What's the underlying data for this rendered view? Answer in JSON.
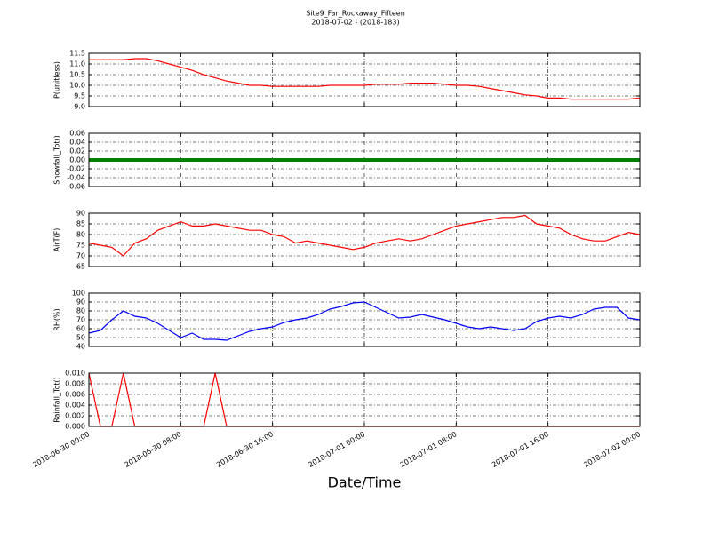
{
  "chart_data": [
    {
      "type": "line",
      "title": "Site9_Far_Rockaway_Fifteen",
      "subtitle": "2018-07-02 - (2018-183)",
      "ylabel": "P(unitless)",
      "series": [
        {
          "color": "#ff0000",
          "values": [
            11.2,
            11.2,
            11.2,
            11.2,
            11.25,
            11.25,
            11.15,
            11.0,
            10.85,
            10.7,
            10.5,
            10.35,
            10.2,
            10.1,
            10.0,
            10.0,
            9.95,
            9.95,
            9.95,
            9.95,
            9.95,
            10.0,
            10.0,
            10.0,
            10.0,
            10.05,
            10.05,
            10.05,
            10.1,
            10.1,
            10.1,
            10.05,
            10.0,
            10.0,
            9.95,
            9.85,
            9.75,
            9.65,
            9.55,
            9.5,
            9.4,
            9.4,
            9.35,
            9.35,
            9.35,
            9.35,
            9.35,
            9.35,
            9.4
          ]
        }
      ],
      "ylim": [
        9.0,
        11.5
      ],
      "yticks": [
        {
          "value": 9,
          "label": "9.0"
        },
        9.5,
        {
          "value": 10,
          "label": "10.0"
        },
        10.5,
        {
          "value": 11,
          "label": "11.0"
        },
        11.5
      ],
      "grid": true
    },
    {
      "type": "line",
      "ylabel": "Snowfall_Tot()",
      "series": [
        {
          "color": "#008000",
          "values": [
            0,
            0,
            0,
            0,
            0,
            0,
            0,
            0,
            0,
            0,
            0,
            0,
            0,
            0,
            0,
            0,
            0,
            0,
            0,
            0,
            0,
            0,
            0,
            0,
            0,
            0,
            0,
            0,
            0,
            0,
            0,
            0,
            0,
            0,
            0,
            0,
            0,
            0,
            0,
            0,
            0,
            0,
            0,
            0,
            0,
            0,
            0,
            0,
            0
          ]
        }
      ],
      "ylim": [
        -0.06,
        0.06
      ],
      "yticks": [
        -0.06,
        -0.04,
        -0.02,
        {
          "value": 0,
          "label": "0.00"
        },
        0.02,
        0.04,
        0.06
      ],
      "grid": true
    },
    {
      "type": "line",
      "ylabel": "AirT(F)",
      "series": [
        {
          "color": "#ff0000",
          "values": [
            76,
            75,
            74,
            70,
            76,
            78,
            82,
            84,
            86,
            84,
            84,
            85,
            84,
            83,
            82,
            82,
            80,
            79,
            76,
            77,
            76,
            75,
            74,
            73,
            74,
            76,
            77,
            78,
            77,
            78,
            80,
            82,
            84,
            85,
            86,
            87,
            88,
            88,
            89,
            85,
            84,
            83,
            80,
            78,
            77,
            77,
            79,
            81,
            80
          ]
        }
      ],
      "ylim": [
        65,
        90
      ],
      "yticks": [
        65,
        70,
        75,
        80,
        85,
        90
      ],
      "grid": true
    },
    {
      "type": "line",
      "ylabel": "RH(%)",
      "series": [
        {
          "color": "#0000ff",
          "values": [
            55,
            58,
            70,
            80,
            74,
            72,
            66,
            58,
            50,
            55,
            48,
            48,
            47,
            52,
            57,
            60,
            62,
            67,
            70,
            72,
            76,
            82,
            85,
            89,
            90,
            84,
            78,
            72,
            73,
            76,
            73,
            70,
            66,
            62,
            60,
            62,
            60,
            58,
            60,
            68,
            72,
            74,
            72,
            76,
            82,
            84,
            84,
            72,
            70
          ]
        }
      ],
      "ylim": [
        40,
        100
      ],
      "yticks": [
        40,
        50,
        60,
        70,
        80,
        90,
        100
      ],
      "grid": true
    },
    {
      "type": "line",
      "ylabel": "Rainfall_Tot()",
      "xlabel": "Date/Time",
      "x": [
        "2018-06-30 00:00",
        "2018-06-30 01:00",
        "2018-06-30 02:00",
        "2018-06-30 03:00",
        "2018-06-30 04:00",
        "2018-06-30 05:00",
        "2018-06-30 06:00",
        "2018-06-30 07:00",
        "2018-06-30 08:00",
        "2018-06-30 09:00",
        "2018-06-30 10:00",
        "2018-06-30 11:00",
        "2018-06-30 12:00",
        "2018-06-30 13:00",
        "2018-06-30 14:00",
        "2018-06-30 15:00",
        "2018-06-30 16:00",
        "2018-06-30 17:00",
        "2018-06-30 18:00",
        "2018-06-30 19:00",
        "2018-06-30 20:00",
        "2018-06-30 21:00",
        "2018-06-30 22:00",
        "2018-06-30 23:00",
        "2018-07-01 00:00",
        "2018-07-01 01:00",
        "2018-07-01 02:00",
        "2018-07-01 03:00",
        "2018-07-01 04:00",
        "2018-07-01 05:00",
        "2018-07-01 06:00",
        "2018-07-01 07:00",
        "2018-07-01 08:00",
        "2018-07-01 09:00",
        "2018-07-01 10:00",
        "2018-07-01 11:00",
        "2018-07-01 12:00",
        "2018-07-01 13:00",
        "2018-07-01 14:00",
        "2018-07-01 15:00",
        "2018-07-01 16:00",
        "2018-07-01 17:00",
        "2018-07-01 18:00",
        "2018-07-01 19:00",
        "2018-07-01 20:00",
        "2018-07-01 21:00",
        "2018-07-01 22:00",
        "2018-07-01 23:00",
        "2018-07-02 00:00"
      ],
      "series": [
        {
          "color": "#ff0000",
          "values": [
            0.01,
            0,
            0,
            0.01,
            0,
            0,
            0,
            0,
            0,
            0,
            0,
            0.01,
            0,
            0,
            0,
            0,
            0,
            0,
            0,
            0,
            0,
            0,
            0,
            0,
            0,
            0,
            0,
            0,
            0,
            0,
            0,
            0,
            0,
            0,
            0,
            0,
            0,
            0,
            0,
            0,
            0,
            0,
            0,
            0,
            0,
            0,
            0,
            0,
            0
          ]
        }
      ],
      "xlim": [
        "2018-06-30 00:00",
        "2018-07-02 00:00"
      ],
      "xticks": [
        "2018-06-30 00:00",
        "2018-06-30 08:00",
        "2018-06-30 16:00",
        "2018-07-01 00:00",
        "2018-07-01 08:00",
        "2018-07-01 16:00",
        "2018-07-02 00:00"
      ],
      "ylim": [
        0,
        0.01
      ],
      "yticks": [
        {
          "value": 0,
          "label": "0.000"
        },
        0.002,
        0.004,
        0.006,
        0.008,
        {
          "value": 0.01,
          "label": "0.010"
        }
      ],
      "grid": true
    }
  ]
}
